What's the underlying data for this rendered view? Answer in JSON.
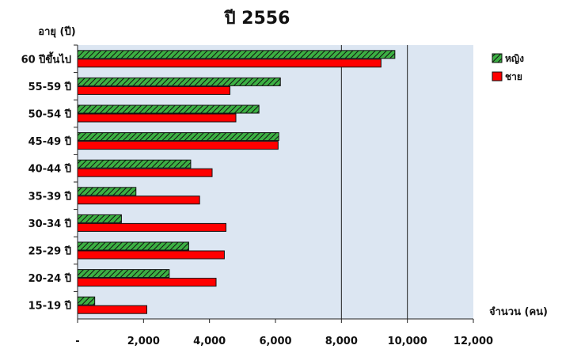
{
  "chart_data": {
    "type": "bar",
    "orientation": "horizontal",
    "title": "ปี 2556",
    "ylabel": "อายุ (ปี)",
    "xlabel": "จำนวน (คน)",
    "categories": [
      "15-19 ปี",
      "20-24 ปี",
      "25-29 ปี",
      "30-34 ปี",
      "35-39 ปี",
      "40-44 ปี",
      "45-49 ปี",
      "50-54 ปี",
      "55-59 ปี",
      "60 ปีขึ้นไป"
    ],
    "series": [
      {
        "name": "หญิง",
        "color": "#3cb043",
        "pattern": "diagonal-hatch",
        "values": [
          520,
          2780,
          3370,
          1330,
          1770,
          3430,
          6100,
          5500,
          6150,
          9620
        ]
      },
      {
        "name": "ชาย",
        "color": "#ff0000",
        "values": [
          2100,
          4200,
          4450,
          4500,
          3700,
          4080,
          6080,
          4800,
          4620,
          9200
        ]
      }
    ],
    "xlim": [
      0,
      12000
    ],
    "xticks": [
      "-",
      "2,000",
      "4,000",
      "6,000",
      "8,000",
      "10,000",
      "12,000"
    ],
    "xtick_values": [
      0,
      2000,
      4000,
      6000,
      8000,
      10000,
      12000
    ],
    "gridlines": [
      8000,
      10000
    ],
    "plot_background": "#dce6f2",
    "legend_position": "right-top"
  }
}
